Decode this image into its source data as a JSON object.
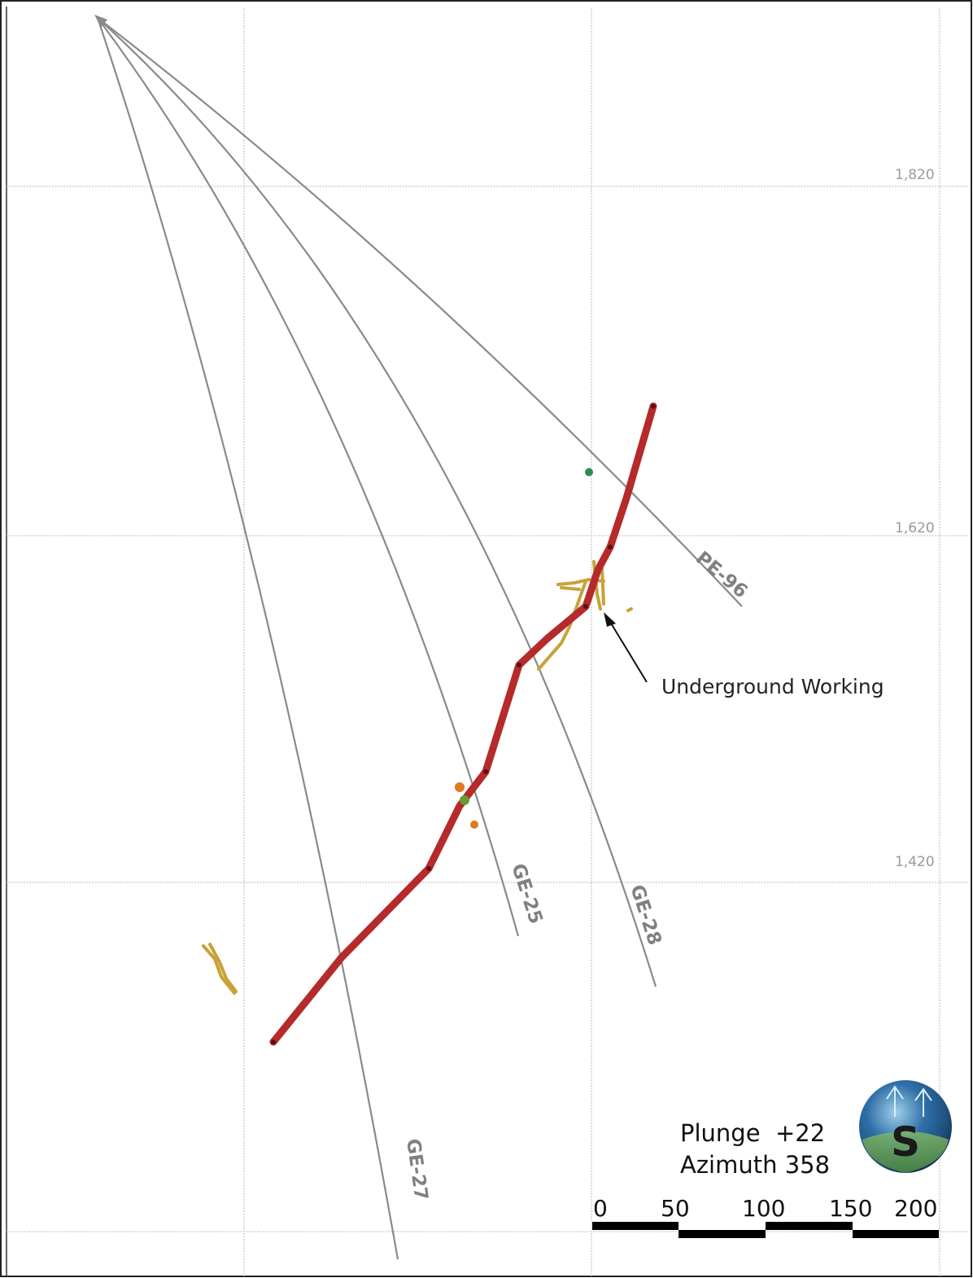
{
  "grid": {
    "elevation_labels": [
      "1,820",
      "1,620",
      "1,420"
    ]
  },
  "drillholes": [
    {
      "id": "PE-96",
      "label": "PE-96"
    },
    {
      "id": "GE-28",
      "label": "GE-28"
    },
    {
      "id": "GE-25",
      "label": "GE-25"
    },
    {
      "id": "GE-27",
      "label": "GE-27"
    }
  ],
  "annotation": {
    "text": "Underground Working"
  },
  "orientation": {
    "plunge": "Plunge  +22",
    "azimuth": "Azimuth 358"
  },
  "scale_bar": {
    "labels": [
      "0",
      "50",
      "100",
      "150",
      "200"
    ]
  },
  "logo": {
    "letter": "S"
  },
  "colors": {
    "grid": "#c8c8c8",
    "drillhole": "#8a8a8a",
    "vein": "#b52a2a",
    "working": "#c8a238",
    "accent_orange": "#e07820",
    "accent_green": "#2a8a5a"
  }
}
